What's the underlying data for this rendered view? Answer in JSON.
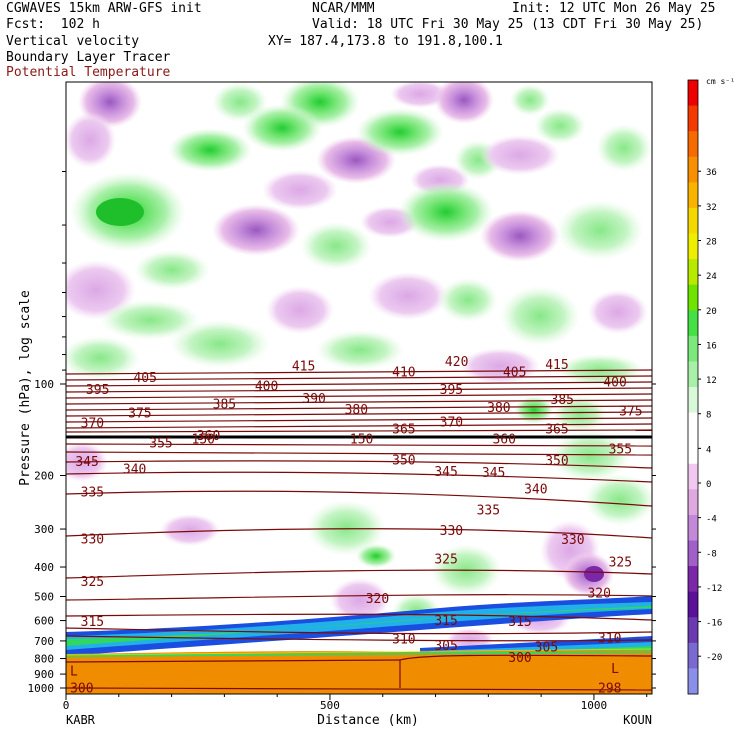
{
  "header": {
    "title": "CGWAVES 15km ARW-GFS init",
    "org": "NCAR/MMM",
    "init": "Init: 12 UTC Mon 26 May 25",
    "fcst": "Fcst:  102 h",
    "valid": "Valid: 18 UTC Fri 30 May 25 (13 CDT Fri 30 May 25)",
    "field1": "Vertical velocity",
    "field2": "Boundary Layer Tracer",
    "field3": "Potential Temperature",
    "xy": "XY= 187.4,173.8 to 191.8,100.1"
  },
  "colors": {
    "theta": "#7a0a0a",
    "tropopause": "#000000",
    "field3_text": "#8b1a1a"
  },
  "chart_data": {
    "type": "heatmap",
    "xlabel": "Distance (km)",
    "ylabel": "Pressure (hPa), log scale",
    "xlim": [
      0,
      1110
    ],
    "x_ticks": [
      "0",
      "500",
      "1000"
    ],
    "y_ticks": [
      "100",
      "200",
      "300",
      "400",
      "500",
      "600",
      "700",
      "800",
      "900",
      "1000"
    ],
    "x_endpoints": {
      "left": "KABR",
      "right": "KOUN"
    },
    "colorbar": {
      "unit": "cm s⁻¹",
      "labels": [
        "36",
        "32",
        "28",
        "24",
        "20",
        "16",
        "12",
        "8",
        "4",
        "0",
        "-4",
        "-8",
        "-12",
        "-16",
        "-20"
      ],
      "colors": [
        "#ee0000",
        "#f53a00",
        "#f66a00",
        "#f78f00",
        "#f9b400",
        "#f4d800",
        "#eeee00",
        "#b8ea00",
        "#6ee400",
        "#44e044",
        "#7ae87a",
        "#a8f0a8",
        "#d8f8d8",
        "#ffffff",
        "#ffffff",
        "#f0c8f0",
        "#e0a8e0",
        "#c488d8",
        "#a060c8",
        "#7a28a8",
        "#5a1098",
        "#6a3ab0",
        "#7a6ad0",
        "#8a90e8"
      ]
    },
    "theta_labels": [
      {
        "text": "415",
        "x": 450,
        "p": 87
      },
      {
        "text": "420",
        "x": 740,
        "p": 84
      },
      {
        "text": "415",
        "x": 930,
        "p": 86
      },
      {
        "text": "410",
        "x": 640,
        "p": 91
      },
      {
        "text": "405",
        "x": 150,
        "p": 95
      },
      {
        "text": "405",
        "x": 850,
        "p": 91
      },
      {
        "text": "400",
        "x": 380,
        "p": 101
      },
      {
        "text": "400",
        "x": 1040,
        "p": 98
      },
      {
        "text": "395",
        "x": 60,
        "p": 104
      },
      {
        "text": "395",
        "x": 730,
        "p": 104
      },
      {
        "text": "390",
        "x": 470,
        "p": 111
      },
      {
        "text": "385",
        "x": 300,
        "p": 116
      },
      {
        "text": "385",
        "x": 940,
        "p": 112
      },
      {
        "text": "375",
        "x": 140,
        "p": 124
      },
      {
        "text": "380",
        "x": 550,
        "p": 121
      },
      {
        "text": "380",
        "x": 820,
        "p": 119
      },
      {
        "text": "375",
        "x": 1070,
        "p": 122
      },
      {
        "text": "370",
        "x": 50,
        "p": 134
      },
      {
        "text": "370",
        "x": 730,
        "p": 133
      },
      {
        "text": "365",
        "x": 640,
        "p": 140
      },
      {
        "text": "365",
        "x": 930,
        "p": 140
      },
      {
        "text": "360",
        "x": 270,
        "p": 147
      },
      {
        "text": "360",
        "x": 830,
        "p": 151
      },
      {
        "text": "355",
        "x": 180,
        "p": 156
      },
      {
        "text": "355",
        "x": 1050,
        "p": 163
      },
      {
        "text": "350",
        "x": 640,
        "p": 177
      },
      {
        "text": "350",
        "x": 930,
        "p": 178
      },
      {
        "text": "345",
        "x": 40,
        "p": 179
      },
      {
        "text": "345",
        "x": 720,
        "p": 193
      },
      {
        "text": "345",
        "x": 810,
        "p": 195
      },
      {
        "text": "340",
        "x": 130,
        "p": 190
      },
      {
        "text": "340",
        "x": 890,
        "p": 221
      },
      {
        "text": "335",
        "x": 50,
        "p": 226
      },
      {
        "text": "335",
        "x": 800,
        "p": 259
      },
      {
        "text": "330",
        "x": 50,
        "p": 322
      },
      {
        "text": "330",
        "x": 730,
        "p": 302
      },
      {
        "text": "330",
        "x": 960,
        "p": 323
      },
      {
        "text": "325",
        "x": 720,
        "p": 375
      },
      {
        "text": "325",
        "x": 50,
        "p": 444
      },
      {
        "text": "325",
        "x": 1050,
        "p": 384
      },
      {
        "text": "320",
        "x": 590,
        "p": 505
      },
      {
        "text": "320",
        "x": 1010,
        "p": 485
      },
      {
        "text": "315",
        "x": 50,
        "p": 602
      },
      {
        "text": "315",
        "x": 720,
        "p": 598
      },
      {
        "text": "315",
        "x": 860,
        "p": 602
      },
      {
        "text": "310",
        "x": 640,
        "p": 687
      },
      {
        "text": "310",
        "x": 1030,
        "p": 683
      },
      {
        "text": "305",
        "x": 720,
        "p": 723
      },
      {
        "text": "305",
        "x": 910,
        "p": 730
      },
      {
        "text": "300",
        "x": 860,
        "p": 792
      },
      {
        "text": "300",
        "x": 30,
        "p": 995
      },
      {
        "text": "298",
        "x": 1030,
        "p": 995
      },
      {
        "text": "L",
        "x": 15,
        "p": 875
      },
      {
        "text": "L",
        "x": 1040,
        "p": 858
      },
      {
        "text": "150",
        "x": 260,
        "p": 151
      },
      {
        "text": "150",
        "x": 560,
        "p": 151
      }
    ]
  }
}
